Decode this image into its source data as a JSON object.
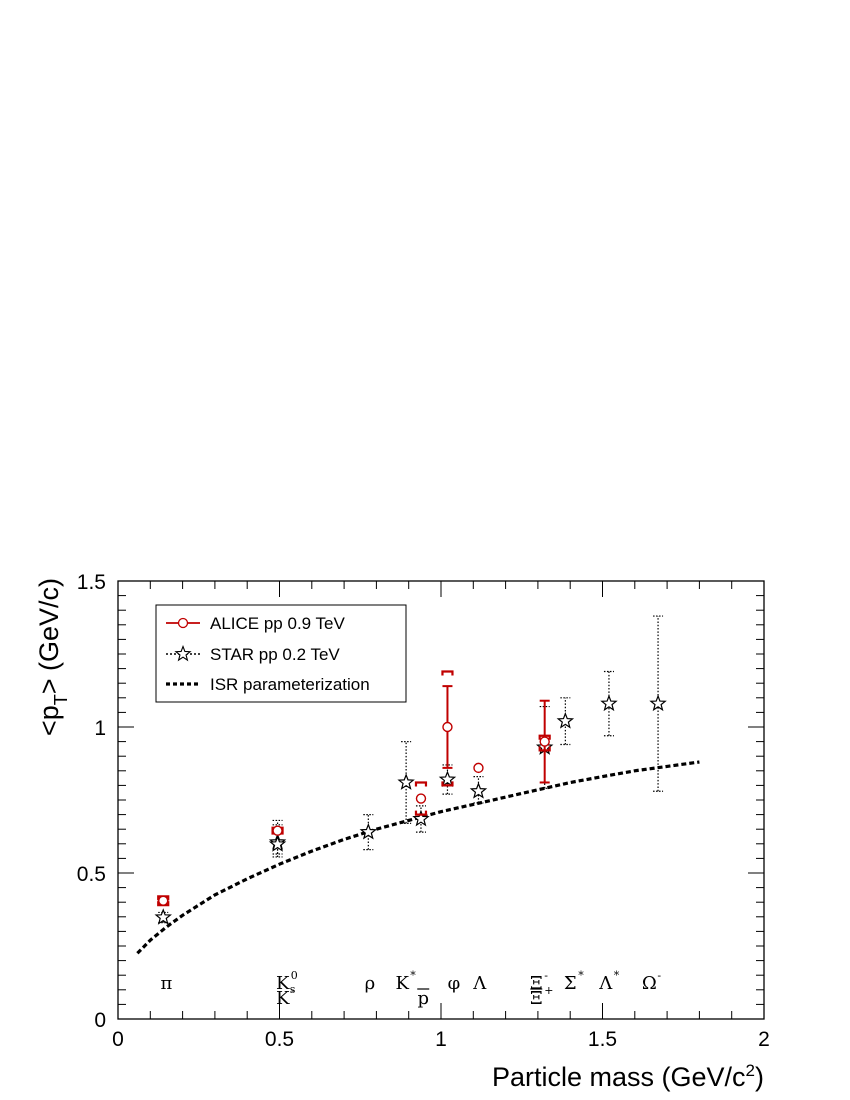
{
  "chart_data": {
    "type": "scatter",
    "xlabel": "Particle mass (GeV/c",
    "xlabel_sup": "2",
    "xlabel_end": ")",
    "ylabel": "<p",
    "ylabel_sub": "T",
    "ylabel_end": "> (GeV/c)",
    "xlim": [
      0,
      2
    ],
    "ylim": [
      0,
      1.5
    ],
    "x_ticks": [
      0,
      0.5,
      1,
      1.5,
      2
    ],
    "x_tick_labels": [
      "0",
      "0.5",
      "1",
      "1.5",
      "2"
    ],
    "y_ticks": [
      0,
      0.5,
      1,
      1.5
    ],
    "y_tick_labels": [
      "0",
      "0.5",
      "1",
      "1.5"
    ],
    "grid": false,
    "legend_position": "top-left",
    "colors": {
      "alice": "#c00000",
      "star": "#000000",
      "isr": "#000000"
    },
    "series": [
      {
        "name": "ALICE pp 0.9 TeV",
        "marker": "open-circle",
        "points": [
          {
            "x": 0.14,
            "y": 0.405,
            "stat": [
              0.4,
              0.41
            ],
            "syst": [
              0.39,
              0.42
            ]
          },
          {
            "x": 0.494,
            "y": 0.645,
            "stat": [
              0.64,
              0.65
            ],
            "syst": [
              0.635,
              0.655
            ]
          },
          {
            "x": 0.938,
            "y": 0.755,
            "stat": null,
            "syst": [
              0.7,
              0.81
            ]
          },
          {
            "x": 1.02,
            "y": 1.0,
            "stat": [
              0.86,
              1.14
            ],
            "syst": [
              0.8,
              1.19
            ]
          },
          {
            "x": 1.116,
            "y": 0.86,
            "stat": null,
            "syst": null
          },
          {
            "x": 1.321,
            "y": 0.95,
            "stat": [
              0.81,
              1.09
            ],
            "syst": [
              0.92,
              0.97
            ]
          }
        ]
      },
      {
        "name": "STAR pp 0.2 TeV",
        "marker": "open-star",
        "points": [
          {
            "x": 0.14,
            "y": 0.348,
            "err": [
              0.33,
              0.365
            ]
          },
          {
            "x": 0.494,
            "y": 0.605,
            "err": [
              0.565,
              0.665
            ]
          },
          {
            "x": 0.494,
            "y": 0.598,
            "err": [
              0.555,
              0.68
            ]
          },
          {
            "x": 0.775,
            "y": 0.64,
            "err": [
              0.58,
              0.7
            ]
          },
          {
            "x": 0.892,
            "y": 0.81,
            "err": [
              0.67,
              0.95
            ]
          },
          {
            "x": 0.938,
            "y": 0.685,
            "err": [
              0.64,
              0.73
            ]
          },
          {
            "x": 1.02,
            "y": 0.82,
            "err": [
              0.77,
              0.87
            ]
          },
          {
            "x": 1.116,
            "y": 0.78,
            "err": [
              0.74,
              0.83
            ]
          },
          {
            "x": 1.321,
            "y": 0.93,
            "err": [
              0.79,
              1.07
            ]
          },
          {
            "x": 1.385,
            "y": 1.02,
            "err": [
              0.94,
              1.1
            ]
          },
          {
            "x": 1.52,
            "y": 1.08,
            "err": [
              0.97,
              1.19
            ]
          },
          {
            "x": 1.672,
            "y": 1.08,
            "err": [
              0.78,
              1.38
            ]
          }
        ]
      },
      {
        "name": "ISR parameterization",
        "line": "dashed",
        "x": [
          0.06,
          0.1,
          0.15,
          0.2,
          0.3,
          0.4,
          0.5,
          0.6,
          0.7,
          0.8,
          0.9,
          1.0,
          1.1,
          1.2,
          1.3,
          1.4,
          1.5,
          1.6,
          1.7,
          1.8
        ],
        "y": [
          0.225,
          0.27,
          0.315,
          0.355,
          0.425,
          0.48,
          0.53,
          0.575,
          0.615,
          0.65,
          0.68,
          0.71,
          0.735,
          0.76,
          0.785,
          0.81,
          0.83,
          0.85,
          0.865,
          0.88
        ]
      }
    ],
    "particle_labels": [
      {
        "text": "π",
        "x": 0.15,
        "row": 1,
        "sup": "",
        "sub": "",
        "bar": false
      },
      {
        "text": "K",
        "x": 0.51,
        "row": 1,
        "sup": "0",
        "sub": "s",
        "bar": false
      },
      {
        "text": "K",
        "x": 0.51,
        "row": 2,
        "sup": "-",
        "sub": "",
        "bar": false
      },
      {
        "text": "ρ",
        "x": 0.78,
        "row": 1,
        "sup": "",
        "sub": "",
        "bar": false
      },
      {
        "text": "K",
        "x": 0.88,
        "row": 1,
        "sup": "*",
        "sub": "",
        "bar": false
      },
      {
        "text": "p",
        "x": 0.945,
        "row": 2,
        "sup": "",
        "sub": "",
        "bar": true
      },
      {
        "text": "φ",
        "x": 1.04,
        "row": 1,
        "sup": "",
        "sub": "",
        "bar": false
      },
      {
        "text": "Λ",
        "x": 1.12,
        "row": 1,
        "sup": "",
        "sub": "",
        "bar": false
      },
      {
        "text": "Ξ",
        "x": 1.295,
        "row": 1,
        "sup": "-",
        "sub": "",
        "bar": false
      },
      {
        "text": "Ξ",
        "x": 1.295,
        "row": 2,
        "sup": "+",
        "sub": "",
        "bar": true
      },
      {
        "text": "Σ",
        "x": 1.4,
        "row": 1,
        "sup": "*",
        "sub": "",
        "bar": false
      },
      {
        "text": "Λ",
        "x": 1.51,
        "row": 1,
        "sup": "*",
        "sub": "",
        "bar": false
      },
      {
        "text": "Ω",
        "x": 1.645,
        "row": 1,
        "sup": "-",
        "sub": "",
        "bar": false
      }
    ]
  }
}
